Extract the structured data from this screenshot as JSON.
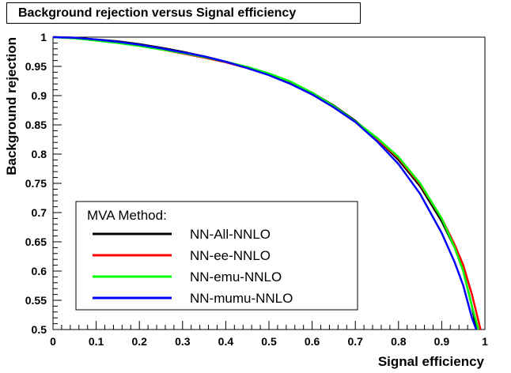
{
  "chart_data": {
    "type": "line",
    "title": "Background rejection versus Signal efficiency",
    "xlabel": "Signal efficiency",
    "ylabel": "Background rejection",
    "xlim": [
      0,
      1
    ],
    "ylim": [
      0.5,
      1
    ],
    "x_ticks": [
      "0",
      "0.1",
      "0.2",
      "0.3",
      "0.4",
      "0.5",
      "0.6",
      "0.7",
      "0.8",
      "0.9",
      "1"
    ],
    "y_ticks": [
      "0.5",
      "0.55",
      "0.6",
      "0.65",
      "0.7",
      "0.75",
      "0.8",
      "0.85",
      "0.9",
      "0.95",
      "1"
    ],
    "grid": false,
    "legend": {
      "title": "MVA Method:",
      "placement": "bottom-left"
    },
    "series": [
      {
        "name": "NN-All-NNLO",
        "color": "#000000",
        "points": [
          [
            0,
            1.0
          ],
          [
            0.05,
            0.999
          ],
          [
            0.1,
            0.996
          ],
          [
            0.15,
            0.993
          ],
          [
            0.2,
            0.988
          ],
          [
            0.25,
            0.982
          ],
          [
            0.3,
            0.975
          ],
          [
            0.35,
            0.967
          ],
          [
            0.4,
            0.958
          ],
          [
            0.45,
            0.948
          ],
          [
            0.5,
            0.937
          ],
          [
            0.55,
            0.922
          ],
          [
            0.6,
            0.905
          ],
          [
            0.65,
            0.883
          ],
          [
            0.7,
            0.857
          ],
          [
            0.75,
            0.826
          ],
          [
            0.8,
            0.79
          ],
          [
            0.85,
            0.745
          ],
          [
            0.9,
            0.685
          ],
          [
            0.93,
            0.64
          ],
          [
            0.95,
            0.6
          ],
          [
            0.97,
            0.54
          ],
          [
            0.98,
            0.5
          ]
        ]
      },
      {
        "name": "NN-ee-NNLO",
        "color": "#ff0000",
        "points": [
          [
            0,
            1.0
          ],
          [
            0.05,
            0.999
          ],
          [
            0.1,
            0.995
          ],
          [
            0.15,
            0.991
          ],
          [
            0.2,
            0.986
          ],
          [
            0.25,
            0.979
          ],
          [
            0.3,
            0.972
          ],
          [
            0.35,
            0.965
          ],
          [
            0.4,
            0.957
          ],
          [
            0.45,
            0.947
          ],
          [
            0.5,
            0.936
          ],
          [
            0.55,
            0.921
          ],
          [
            0.6,
            0.902
          ],
          [
            0.65,
            0.88
          ],
          [
            0.7,
            0.855
          ],
          [
            0.75,
            0.826
          ],
          [
            0.8,
            0.793
          ],
          [
            0.85,
            0.748
          ],
          [
            0.9,
            0.69
          ],
          [
            0.93,
            0.645
          ],
          [
            0.95,
            0.61
          ],
          [
            0.97,
            0.56
          ],
          [
            0.99,
            0.5
          ]
        ]
      },
      {
        "name": "NN-emu-NNLO",
        "color": "#00ff00",
        "points": [
          [
            0,
            1.0
          ],
          [
            0.05,
            0.998
          ],
          [
            0.1,
            0.994
          ],
          [
            0.15,
            0.99
          ],
          [
            0.2,
            0.985
          ],
          [
            0.25,
            0.979
          ],
          [
            0.3,
            0.973
          ],
          [
            0.35,
            0.966
          ],
          [
            0.4,
            0.958
          ],
          [
            0.45,
            0.949
          ],
          [
            0.5,
            0.938
          ],
          [
            0.55,
            0.924
          ],
          [
            0.6,
            0.905
          ],
          [
            0.65,
            0.882
          ],
          [
            0.7,
            0.856
          ],
          [
            0.75,
            0.828
          ],
          [
            0.8,
            0.795
          ],
          [
            0.85,
            0.75
          ],
          [
            0.9,
            0.69
          ],
          [
            0.93,
            0.64
          ],
          [
            0.95,
            0.6
          ],
          [
            0.97,
            0.54
          ],
          [
            0.985,
            0.5
          ]
        ]
      },
      {
        "name": "NN-mumu-NNLO",
        "color": "#0000ff",
        "points": [
          [
            0,
            1.0
          ],
          [
            0.05,
            0.999
          ],
          [
            0.1,
            0.996
          ],
          [
            0.15,
            0.992
          ],
          [
            0.2,
            0.987
          ],
          [
            0.25,
            0.981
          ],
          [
            0.3,
            0.974
          ],
          [
            0.35,
            0.967
          ],
          [
            0.4,
            0.958
          ],
          [
            0.45,
            0.947
          ],
          [
            0.5,
            0.935
          ],
          [
            0.55,
            0.92
          ],
          [
            0.6,
            0.902
          ],
          [
            0.65,
            0.88
          ],
          [
            0.7,
            0.855
          ],
          [
            0.75,
            0.822
          ],
          [
            0.8,
            0.783
          ],
          [
            0.85,
            0.732
          ],
          [
            0.9,
            0.665
          ],
          [
            0.93,
            0.615
          ],
          [
            0.95,
            0.575
          ],
          [
            0.97,
            0.52
          ],
          [
            0.98,
            0.5
          ]
        ]
      }
    ]
  }
}
